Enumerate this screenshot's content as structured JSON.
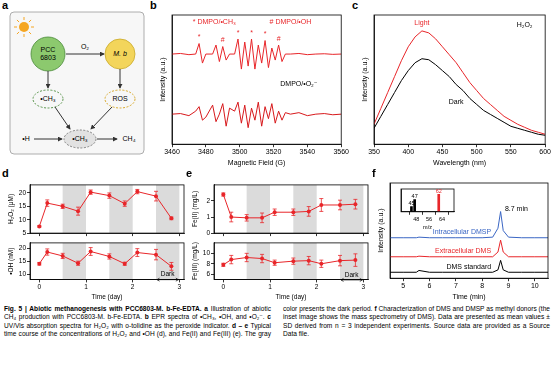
{
  "diagram": {
    "panel": "a",
    "nodes": [
      [
        "PCC",
        "6803"
      ],
      [
        "M. b"
      ],
      [
        "O₂"
      ],
      [
        "•CH₃"
      ],
      [
        "ROS"
      ],
      [
        "•H"
      ],
      [
        "•CH₃"
      ],
      [
        "CH₄"
      ]
    ]
  },
  "chart_data": [
    {
      "panel": "b",
      "type": "line",
      "x": [
        3460,
        3465,
        3470,
        3474,
        3476,
        3478,
        3480,
        3484,
        3486,
        3488,
        3490,
        3492,
        3494,
        3497,
        3499,
        3501,
        3503,
        3505,
        3507,
        3509,
        3511,
        3513,
        3515,
        3517,
        3519,
        3521,
        3523,
        3525,
        3527,
        3530,
        3535,
        3540,
        3545,
        3550,
        3555,
        3560
      ],
      "series": [
        {
          "color": "#e8262a",
          "values": [
            3.0,
            3.02,
            2.98,
            3.0,
            3.35,
            2.7,
            3.0,
            3.0,
            3.3,
            2.75,
            3.25,
            2.8,
            3.0,
            3.0,
            3.5,
            2.5,
            3.4,
            2.6,
            3.5,
            2.5,
            3.3,
            2.7,
            3.45,
            2.55,
            3.2,
            2.8,
            3.3,
            2.75,
            3.0,
            3.0,
            3.02,
            2.98,
            3.0,
            3.01,
            2.99,
            3.0
          ]
        },
        {
          "color": "#d7191c",
          "values": [
            1.0,
            1.02,
            0.95,
            1.1,
            1.25,
            0.8,
            0.9,
            1.3,
            0.75,
            1.0,
            1.35,
            0.6,
            1.2,
            1.1,
            1.4,
            0.7,
            1.3,
            0.55,
            1.2,
            0.8,
            1.4,
            0.6,
            1.25,
            0.85,
            1.35,
            0.7,
            1.1,
            0.8,
            1.05,
            1.0,
            1.05,
            0.95,
            1.0,
            1.02,
            0.98,
            1.0
          ]
        }
      ],
      "xlim": [
        3460,
        3560
      ],
      "xticks": [
        3460,
        3480,
        3500,
        3520,
        3540,
        3560
      ],
      "ylim": [
        0,
        4.3
      ],
      "xlabel": "Magnetic Field (G)",
      "ylabel": "Intensity (a.u.)",
      "tick_labels": "x",
      "grid": false,
      "annotations": [
        {
          "text": "* DMPO/•CH₃",
          "x": 3485,
          "y": 4.05,
          "color": "#e8262a"
        },
        {
          "text": "# DMPO/•OH",
          "x": 3530,
          "y": 4.05,
          "color": "#e8262a"
        },
        {
          "text": "*",
          "x": 3476,
          "y": 3.55,
          "color": "#e8262a"
        },
        {
          "text": "*",
          "x": 3499,
          "y": 3.7,
          "color": "#e8262a"
        },
        {
          "text": "*",
          "x": 3507,
          "y": 3.7,
          "color": "#e8262a"
        },
        {
          "text": "*",
          "x": 3515,
          "y": 3.65,
          "color": "#e8262a"
        },
        {
          "text": "#",
          "x": 3490,
          "y": 3.45,
          "color": "#e8262a"
        },
        {
          "text": "#",
          "x": 3523,
          "y": 3.5,
          "color": "#e8262a"
        },
        {
          "text": "DMPO/•O₂⁻",
          "x": 3535,
          "y": 2.0,
          "color": "#000000"
        }
      ]
    },
    {
      "panel": "c",
      "type": "line",
      "x": [
        350,
        360,
        370,
        380,
        390,
        400,
        410,
        420,
        430,
        440,
        450,
        460,
        470,
        480,
        490,
        500,
        510,
        520,
        530,
        540,
        550,
        560,
        570,
        580,
        590,
        600
      ],
      "series": [
        {
          "color": "#e8262a",
          "values": [
            1.0,
            1.8,
            2.6,
            3.4,
            4.2,
            4.9,
            5.4,
            5.7,
            5.6,
            5.3,
            4.9,
            4.5,
            4.1,
            3.6,
            3.1,
            2.7,
            2.3,
            2.0,
            1.7,
            1.4,
            1.2,
            1.0,
            0.85,
            0.7,
            0.6,
            0.5
          ]
        },
        {
          "color": "#000000",
          "values": [
            0.8,
            1.4,
            2.0,
            2.6,
            3.2,
            3.7,
            4.1,
            4.3,
            4.25,
            4.0,
            3.7,
            3.4,
            3.0,
            2.7,
            2.3,
            2.0,
            1.7,
            1.5,
            1.3,
            1.1,
            0.9,
            0.8,
            0.7,
            0.6,
            0.5,
            0.45
          ]
        }
      ],
      "xlim": [
        350,
        600
      ],
      "xticks": [
        350,
        400,
        450,
        500,
        550,
        600
      ],
      "ylim": [
        0,
        6.5
      ],
      "xlabel": "Wavelength (nm)",
      "ylabel": "Intensity (a.u.)",
      "tick_labels": "x",
      "grid": false,
      "annotations": [
        {
          "text": "Light",
          "x": 420,
          "y": 6.1,
          "color": "#e8262a"
        },
        {
          "text": "Dark",
          "x": 470,
          "y": 2.1,
          "color": "#000000"
        },
        {
          "text": "H₂O₂",
          "x": 570,
          "y": 6.0,
          "color": "#000000"
        }
      ]
    },
    {
      "panel": "d",
      "type": "line",
      "x": [
        0,
        0.17,
        0.5,
        0.83,
        1.1,
        1.5,
        1.83,
        2.1,
        2.5,
        2.83
      ],
      "series": [
        {
          "color": "#e8262a",
          "marker": "circle",
          "values": [
            7.5,
            16.2,
            15.0,
            13.2,
            20.3,
            19.0,
            16.0,
            20.5,
            18.8,
            10.5
          ],
          "errors": [
            0.3,
            1.2,
            0.8,
            1.5,
            0.8,
            1.0,
            1.0,
            0.8,
            1.8,
            0.5
          ]
        }
      ],
      "xlim": [
        -0.2,
        3.1
      ],
      "xticks": [
        0,
        1,
        2,
        3
      ],
      "ylim": [
        5,
        23
      ],
      "yticks": [
        5,
        10,
        15,
        20
      ],
      "ylabel": "H₂O₂ (μM)",
      "tick_labels": "y",
      "grid": false,
      "dark_periods": [
        [
          0.5,
          1
        ],
        [
          1.5,
          2
        ],
        [
          2.5,
          3
        ]
      ]
    },
    {
      "type": "line",
      "x": [
        0,
        0.17,
        0.5,
        0.83,
        1.1,
        1.5,
        1.83,
        2.1,
        2.5,
        2.83
      ],
      "series": [
        {
          "color": "#e8262a",
          "marker": "circle",
          "values": [
            14.0,
            18.5,
            17.0,
            14.2,
            18.7,
            16.8,
            14.0,
            18.3,
            17.5,
            13.0
          ],
          "errors": [
            0.5,
            1.2,
            1.0,
            0.8,
            1.5,
            1.0,
            0.6,
            1.5,
            2.0,
            1.5
          ]
        }
      ],
      "xlim": [
        -0.2,
        3.1
      ],
      "xticks": [
        0,
        1,
        2,
        3
      ],
      "ylim": [
        8,
        22
      ],
      "yticks": [
        10,
        15,
        20
      ],
      "xlabel": "Time (day)",
      "ylabel": "•OH (nM)",
      "grid": false,
      "dark_periods": [
        [
          0.5,
          1
        ],
        [
          1.5,
          2
        ],
        [
          2.5,
          3
        ]
      ],
      "annotations": [
        {
          "text": "Dark",
          "x": 2.75,
          "y": 9.9,
          "color": "#000000"
        }
      ]
    },
    {
      "panel": "e",
      "type": "line",
      "x": [
        0,
        0.17,
        0.5,
        0.83,
        1.1,
        1.5,
        1.83,
        2.1,
        2.5,
        2.83
      ],
      "series": [
        {
          "color": "#e8262a",
          "marker": "circle",
          "values": [
            2.4,
            1.0,
            0.95,
            0.95,
            1.3,
            1.3,
            1.35,
            1.75,
            1.75,
            1.8
          ],
          "errors": [
            0.1,
            0.3,
            0.2,
            0.3,
            0.2,
            0.2,
            0.3,
            0.4,
            0.3,
            0.3
          ]
        }
      ],
      "xlim": [
        -0.2,
        3.1
      ],
      "xticks": [
        0,
        1,
        2,
        3
      ],
      "ylim": [
        0,
        3
      ],
      "yticks": [
        0,
        1,
        2
      ],
      "ylabel": "Fe(II) (mg/L)",
      "tick_labels": "y",
      "grid": false,
      "dark_periods": [
        [
          0.5,
          1
        ],
        [
          1.5,
          2
        ],
        [
          2.5,
          3
        ]
      ]
    },
    {
      "type": "line",
      "x": [
        0,
        0.17,
        0.5,
        0.83,
        1.1,
        1.5,
        1.83,
        2.1,
        2.5,
        2.83
      ],
      "series": [
        {
          "color": "#e8262a",
          "marker": "circle",
          "values": [
            7.8,
            8.8,
            9.2,
            9.0,
            8.2,
            8.5,
            8.6,
            8.0,
            8.6,
            8.7
          ],
          "errors": [
            0.3,
            0.8,
            0.8,
            0.8,
            0.5,
            0.6,
            0.8,
            0.7,
            1.0,
            1.2
          ]
        }
      ],
      "xlim": [
        -0.2,
        3.1
      ],
      "xticks": [
        0,
        1,
        2,
        3
      ],
      "ylim": [
        5,
        12
      ],
      "yticks": [
        6,
        8,
        10
      ],
      "xlabel": "Time (day)",
      "ylabel": "Fe(III) (mg/L)",
      "grid": false,
      "dark_periods": [
        [
          0.5,
          1
        ],
        [
          1.5,
          2
        ],
        [
          2.5,
          3
        ]
      ],
      "annotations": [
        {
          "text": "Dark",
          "x": 2.75,
          "y": 5.9,
          "color": "#000000"
        }
      ]
    },
    {
      "panel": "f",
      "type": "line",
      "x": [
        4.5,
        5,
        5.5,
        5.6,
        6,
        6.5,
        7,
        7.5,
        8,
        8.4,
        8.6,
        8.7,
        8.8,
        9,
        9.5,
        10,
        10.5
      ],
      "series": [
        {
          "name": "Intracellular DMSP",
          "color": "#3a66c4",
          "values": [
            3.4,
            3.4,
            3.4,
            3.45,
            3.4,
            3.4,
            3.4,
            3.4,
            3.4,
            3.45,
            4.2,
            5.6,
            4.0,
            3.45,
            3.4,
            3.4,
            3.4
          ]
        },
        {
          "name": "Extracellular DMS",
          "color": "#e8262a",
          "values": [
            1.8,
            1.8,
            1.8,
            1.85,
            1.8,
            1.8,
            1.8,
            1.8,
            1.8,
            1.8,
            2.2,
            3.2,
            2.2,
            1.8,
            1.8,
            1.8,
            1.8
          ]
        },
        {
          "name": "DMS standard",
          "color": "#000000",
          "values": [
            0.5,
            0.5,
            0.5,
            0.65,
            0.5,
            0.5,
            0.5,
            0.5,
            0.5,
            0.5,
            0.7,
            1.5,
            0.7,
            0.5,
            0.5,
            0.5,
            0.5
          ]
        }
      ],
      "xlim": [
        4.5,
        10.5
      ],
      "xticks": [
        5,
        6,
        7,
        8,
        9,
        10
      ],
      "ylim": [
        0,
        8
      ],
      "xlabel": "Time (min)",
      "ylabel": "Intensity (a.u.)",
      "tick_labels": "x",
      "grid": false,
      "annotations": [
        {
          "text": "8.7 min",
          "x": 9.3,
          "y": 5.8,
          "color": "#000000"
        }
      ]
    },
    {
      "type": "bar",
      "x": [
        45,
        47,
        62
      ],
      "values": [
        0.3,
        0.7,
        1.0
      ],
      "colors": [
        "#000000",
        "#000000",
        "#e8262a"
      ],
      "xlim": [
        44,
        66
      ],
      "xticks": [
        48,
        56,
        64
      ],
      "ylim": [
        0,
        1.3
      ],
      "xlabel": "m/z",
      "tick_labels": "x",
      "grid": false,
      "annotations": [
        {
          "text": "45",
          "x": 45,
          "y": 0.45,
          "color": "#000000"
        },
        {
          "text": "47",
          "x": 47,
          "y": 0.85,
          "color": "#000000"
        },
        {
          "text": "62",
          "x": 62,
          "y": 1.15,
          "color": "#e8262a"
        }
      ]
    }
  ],
  "caption": {
    "title": "Fig. 5 | Abiotic methanogenesis with PCC6803-M. b-Fe-EDTA.",
    "items": [
      {
        "label": "a",
        "text": "Illustration of abiotic CH₄ production with PCC6803-M. b-Fe-EDTA."
      },
      {
        "label": "b",
        "text": "EPR spectra of •CH₃, •OH, and •O₂⁻."
      },
      {
        "label": "c",
        "text": "UV/Vis absorption spectra for H₂O₂ with o-tolidine as the peroxide indicator."
      },
      {
        "label": "d – e",
        "text": "Typical time course of the concentrations of H₂O₂ and •OH (d), and Fe(II) and Fe(III) (e). The gray color presents the dark period."
      },
      {
        "label": "f",
        "text": "Characterization of DMS and DMSP as methyl donors (the inset image shows the mass spectrometry of DMS). Data are presented as mean values ± SD derived from n = 3 independent experiments. Source data are provided as a Source Data file."
      }
    ]
  }
}
